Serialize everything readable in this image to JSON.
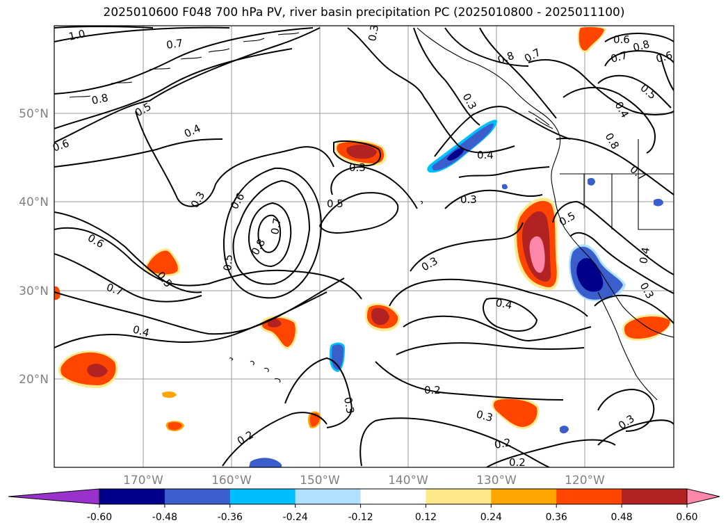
{
  "title": "2025010600 F048 700 hPa PV, river basin precipitation PC (2025010800 - 2025011100)",
  "lat_labels": [
    "50°N",
    "40°N",
    "30°N",
    "20°N"
  ],
  "lon_labels": [
    "170°W",
    "160°W",
    "150°W",
    "140°W",
    "130°W",
    "120°W"
  ],
  "colorbar": {
    "ticks": [
      "-0.60",
      "-0.48",
      "-0.36",
      "-0.24",
      "-0.12",
      "0.12",
      "0.24",
      "0.36",
      "0.48",
      "0.60"
    ],
    "colors": [
      "#9932cc",
      "#00008b",
      "#3a5fcd",
      "#00bfff",
      "#b0e2ff",
      "#ffffff",
      "#ffe88a",
      "#ffa500",
      "#ff4500",
      "#b22222",
      "#ff88aa"
    ]
  },
  "contour_labels": [
    "1.0",
    "0.7",
    "0.8",
    "0.5",
    "0.6",
    "0.4",
    "0.3",
    "0.3",
    "0.5",
    "0.6",
    "0.7",
    "0.8",
    "0.5",
    "0.6",
    "0.7",
    "0.5",
    "0.4",
    "0.3",
    "0.4",
    "0.3",
    "0.3",
    "0.4",
    "0.2",
    "0.3",
    "0.2",
    "0.2",
    "0.3",
    "0.2",
    "0.3",
    "0.3",
    "0.8",
    "0.7",
    "0.6",
    "0.8",
    "0.7",
    "0.6",
    "0.5",
    "0.4",
    "0.8",
    "0.7",
    "0.5",
    "0.4",
    "0.3",
    "0.4",
    "0.2",
    "0.3"
  ]
}
